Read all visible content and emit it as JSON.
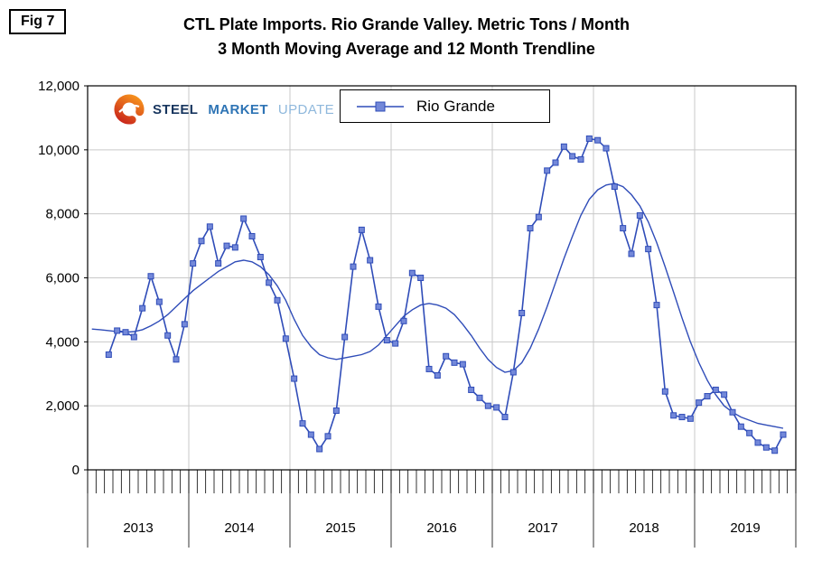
{
  "figure": {
    "label": "Fig 7"
  },
  "title": {
    "line1": "CTL Plate Imports. Rio Grande Valley. Metric Tons / Month",
    "line2": "3 Month Moving Average and 12 Month Trendline"
  },
  "logo": {
    "word1": "STEEL",
    "word2": "MARKET",
    "word3": "UPDATE"
  },
  "legend": {
    "label": "Rio Grande"
  },
  "chart_data": {
    "type": "line",
    "title": "CTL Plate Imports. Rio Grande Valley. Metric Tons / Month — 3 Month Moving Average and 12 Month Trendline",
    "xlabel": "",
    "ylabel": "Metric Tons / Month",
    "ylim": [
      0,
      12000
    ],
    "y_ticks": [
      0,
      2000,
      4000,
      6000,
      8000,
      10000,
      12000
    ],
    "y_tick_labels": [
      "0",
      "2,000",
      "4,000",
      "6,000",
      "8,000",
      "10,000",
      "12,000"
    ],
    "x_years": [
      "2013",
      "2014",
      "2015",
      "2016",
      "2017",
      "2018",
      "2019"
    ],
    "total_months": 84,
    "grid": true,
    "grid_color": "#c9c9c9",
    "legend_position": "top-center",
    "series": [
      {
        "name": "Rio Grande (3 Month Moving Average)",
        "style": "line-with-square-markers",
        "color": "#2f4cb8",
        "marker_fill": "#7388d9",
        "start_month_index": 2,
        "values": [
          3600,
          4350,
          4300,
          4150,
          5050,
          6050,
          5250,
          4200,
          3450,
          4550,
          6450,
          7150,
          7600,
          6450,
          7000,
          6950,
          7850,
          7300,
          6650,
          5850,
          5300,
          4100,
          2850,
          1450,
          1100,
          650,
          1050,
          1850,
          4150,
          6350,
          7500,
          6550,
          5100,
          4050,
          3950,
          4650,
          6150,
          6000,
          3150,
          2950,
          3550,
          3350,
          3300,
          2500,
          2250,
          2000,
          1950,
          1650,
          3050,
          4900,
          7550,
          7900,
          9350,
          9600,
          10100,
          9800,
          9700,
          10350,
          10300,
          10050,
          8850,
          7550,
          6750,
          7950,
          6900,
          5150,
          2450,
          1700,
          1650,
          1600,
          2100,
          2300,
          2500,
          2350,
          1800,
          1350,
          1150,
          850,
          700,
          600,
          1100
        ]
      },
      {
        "name": "12 Month Trendline",
        "style": "smooth-line",
        "color": "#2f4cb8",
        "start_month_index": 0,
        "values": [
          4400,
          4380,
          4350,
          4320,
          4300,
          4320,
          4380,
          4500,
          4650,
          4850,
          5100,
          5350,
          5600,
          5800,
          6000,
          6200,
          6350,
          6500,
          6550,
          6500,
          6350,
          6100,
          5750,
          5300,
          4700,
          4200,
          3850,
          3600,
          3500,
          3450,
          3500,
          3550,
          3600,
          3700,
          3900,
          4200,
          4500,
          4800,
          5000,
          5150,
          5200,
          5150,
          5050,
          4850,
          4550,
          4200,
          3800,
          3450,
          3200,
          3050,
          3100,
          3350,
          3800,
          4400,
          5100,
          5850,
          6600,
          7300,
          7950,
          8450,
          8750,
          8900,
          8950,
          8850,
          8600,
          8250,
          7750,
          7100,
          6350,
          5550,
          4750,
          4000,
          3350,
          2800,
          2350,
          2000,
          1800,
          1650,
          1550,
          1450,
          1400,
          1350,
          1300
        ]
      }
    ]
  }
}
